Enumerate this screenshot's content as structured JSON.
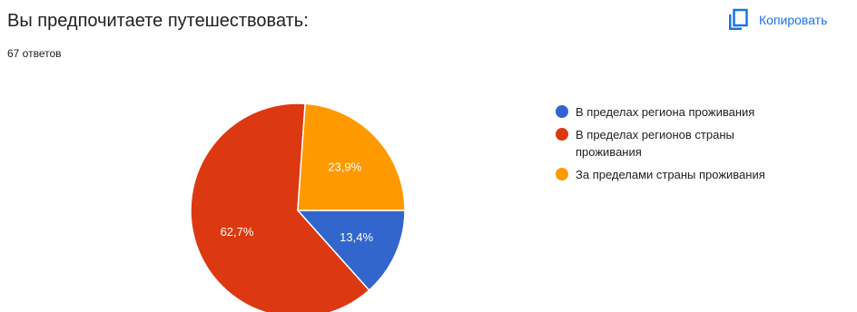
{
  "header": {
    "title": "Вы предпочитаете путешествовать:",
    "responses": "67 ответов",
    "copy_label": "Копировать",
    "copy_icon": "copy-icon"
  },
  "colors": {
    "accent": "#1a73e8",
    "series": [
      "#3366cc",
      "#dc3912",
      "#ff9900"
    ]
  },
  "chart_data": {
    "type": "pie",
    "categories": [
      "В пределах региона проживания",
      "В пределах регионов страны проживания",
      "За пределами страны проживания"
    ],
    "values": [
      13.4,
      62.7,
      23.9
    ],
    "labels": [
      "13,4%",
      "62,7%",
      "23,9%"
    ],
    "legend_position": "right"
  }
}
